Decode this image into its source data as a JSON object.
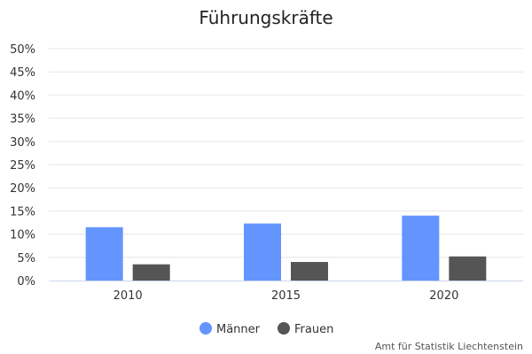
{
  "chart_data": {
    "type": "bar",
    "title": "Führungskräfte",
    "categories": [
      "2010",
      "2015",
      "2020"
    ],
    "series": [
      {
        "name": "Männer",
        "color": "#6495ff",
        "values": [
          11.5,
          12.3,
          14.0
        ]
      },
      {
        "name": "Frauen",
        "color": "#555555",
        "values": [
          3.5,
          4.0,
          5.2
        ]
      }
    ],
    "ylim": [
      0,
      50
    ],
    "yticks": [
      "0%",
      "5%",
      "10%",
      "15%",
      "20%",
      "25%",
      "30%",
      "35%",
      "40%",
      "45%",
      "50%"
    ],
    "grid": true,
    "legend": "bottom-center"
  },
  "credit": "Amt für Statistik Liechtenstein"
}
